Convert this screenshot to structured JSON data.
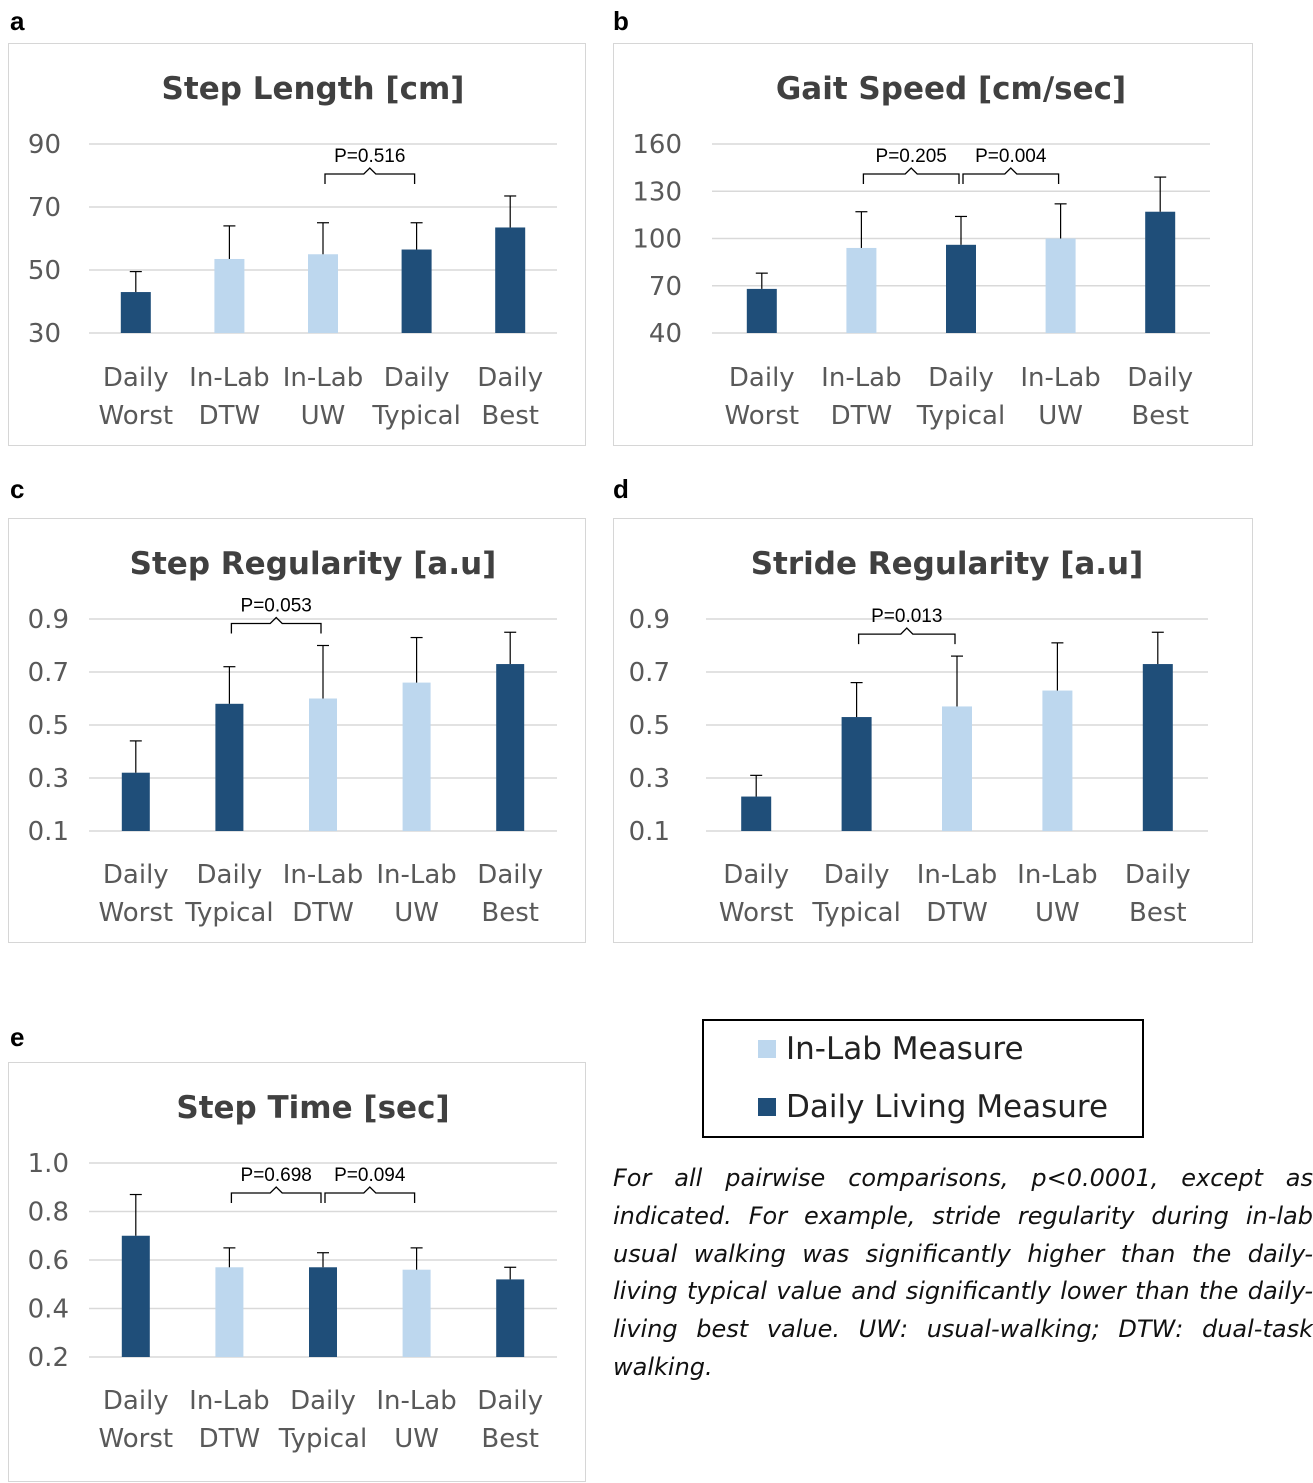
{
  "colors": {
    "in_lab": "#bdd7ee",
    "daily": "#1f4e79",
    "axis_text": "#595959",
    "title_text": "#404040",
    "grid": "#d9d9d9"
  },
  "legend": {
    "in_lab_label": "In-Lab Measure",
    "daily_label": "Daily Living Measure"
  },
  "note": "For all pairwise comparisons, p<0.0001, except as indicated. For example, stride regularity during in-lab usual walking was significantly higher than the daily-living typical value and significantly lower than the daily-living best value. UW: usual-walking; DTW: dual-task walking.",
  "chart_data": [
    {
      "panel": "a",
      "type": "bar",
      "title": "Step Length [cm]",
      "ylim": [
        30,
        90
      ],
      "yticks": [
        "30",
        "50",
        "70",
        "90"
      ],
      "categories": [
        [
          "Daily",
          "Worst"
        ],
        [
          "In-Lab",
          "DTW"
        ],
        [
          "In-Lab",
          "UW"
        ],
        [
          "Daily",
          "Typical"
        ],
        [
          "Daily",
          "Best"
        ]
      ],
      "kinds": [
        "daily",
        "lab",
        "lab",
        "daily",
        "daily"
      ],
      "values": [
        43,
        53.5,
        55,
        56.5,
        63.5
      ],
      "errors": [
        6.5,
        10.5,
        10,
        8.5,
        10
      ],
      "annotations": [
        {
          "label": "P=0.516",
          "from": 2,
          "to": 3
        }
      ]
    },
    {
      "panel": "b",
      "type": "bar",
      "title": "Gait Speed [cm/sec]",
      "ylim": [
        40,
        160
      ],
      "yticks": [
        "40",
        "70",
        "100",
        "130",
        "160"
      ],
      "categories": [
        [
          "Daily",
          "Worst"
        ],
        [
          "In-Lab",
          "DTW"
        ],
        [
          "Daily",
          "Typical"
        ],
        [
          "In-Lab",
          "UW"
        ],
        [
          "Daily",
          "Best"
        ]
      ],
      "kinds": [
        "daily",
        "lab",
        "daily",
        "lab",
        "daily"
      ],
      "values": [
        68,
        94,
        96,
        100,
        117
      ],
      "errors": [
        10,
        23,
        18,
        22,
        22
      ],
      "annotations": [
        {
          "label": "P=0.205",
          "from": 1,
          "to": 2
        },
        {
          "label": "P=0.004",
          "from": 2,
          "to": 3
        }
      ]
    },
    {
      "panel": "c",
      "type": "bar",
      "title": "Step Regularity [a.u]",
      "ylim": [
        0.1,
        0.9
      ],
      "yticks": [
        "0.1",
        "0.3",
        "0.5",
        "0.7",
        "0.9"
      ],
      "categories": [
        [
          "Daily",
          "Worst"
        ],
        [
          "Daily",
          "Typical"
        ],
        [
          "In-Lab",
          "DTW"
        ],
        [
          "In-Lab",
          "UW"
        ],
        [
          "Daily",
          "Best"
        ]
      ],
      "kinds": [
        "daily",
        "daily",
        "lab",
        "lab",
        "daily"
      ],
      "values": [
        0.32,
        0.58,
        0.6,
        0.66,
        0.73
      ],
      "errors": [
        0.12,
        0.14,
        0.2,
        0.17,
        0.12
      ],
      "annotations": [
        {
          "label": "P=0.053",
          "from": 1,
          "to": 2
        }
      ]
    },
    {
      "panel": "d",
      "type": "bar",
      "title": "Stride Regularity [a.u]",
      "ylim": [
        0.1,
        0.9
      ],
      "yticks": [
        "0.1",
        "0.3",
        "0.5",
        "0.7",
        "0.9"
      ],
      "categories": [
        [
          "Daily",
          "Worst"
        ],
        [
          "Daily",
          "Typical"
        ],
        [
          "In-Lab",
          "DTW"
        ],
        [
          "In-Lab",
          "UW"
        ],
        [
          "Daily",
          "Best"
        ]
      ],
      "kinds": [
        "daily",
        "daily",
        "lab",
        "lab",
        "daily"
      ],
      "values": [
        0.23,
        0.53,
        0.57,
        0.63,
        0.73
      ],
      "errors": [
        0.08,
        0.13,
        0.19,
        0.18,
        0.12
      ],
      "annotations": [
        {
          "label": "P=0.013",
          "from": 1,
          "to": 2
        }
      ]
    },
    {
      "panel": "e",
      "type": "bar",
      "title": "Step Time [sec]",
      "ylim": [
        0.2,
        1.0
      ],
      "yticks": [
        "0.2",
        "0.4",
        "0.6",
        "0.8",
        "1.0"
      ],
      "categories": [
        [
          "Daily",
          "Worst"
        ],
        [
          "In-Lab",
          "DTW"
        ],
        [
          "Daily",
          "Typical"
        ],
        [
          "In-Lab",
          "UW"
        ],
        [
          "Daily",
          "Best"
        ]
      ],
      "kinds": [
        "daily",
        "lab",
        "daily",
        "lab",
        "daily"
      ],
      "values": [
        0.7,
        0.57,
        0.57,
        0.56,
        0.52
      ],
      "errors": [
        0.17,
        0.08,
        0.06,
        0.09,
        0.05
      ],
      "annotations": [
        {
          "label": "P=0.698",
          "from": 1,
          "to": 2
        },
        {
          "label": "P=0.094",
          "from": 2,
          "to": 3
        }
      ]
    }
  ]
}
